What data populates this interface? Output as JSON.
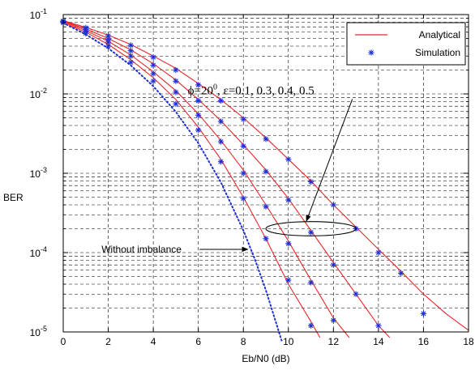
{
  "chart_data": {
    "type": "line",
    "title": "",
    "xlabel": "Eb/N0 (dB)",
    "ylabel": "BER",
    "xlim": [
      0,
      18
    ],
    "ylim": [
      1e-05,
      0.1
    ],
    "yscale": "log",
    "grid": true,
    "x_ticks": [
      "0",
      "2",
      "4",
      "6",
      "8",
      "10",
      "12",
      "14",
      "16",
      "18"
    ],
    "y_ticks": [
      {
        "base": "10",
        "exp": "-5",
        "value": 1e-05
      },
      {
        "base": "10",
        "exp": "-4",
        "value": 0.0001
      },
      {
        "base": "10",
        "exp": "-3",
        "value": 0.001
      },
      {
        "base": "10",
        "exp": "-2",
        "value": 0.01
      },
      {
        "base": "10",
        "exp": "-1",
        "value": 0.1
      }
    ],
    "legend": {
      "position": "top-right",
      "entries": [
        {
          "label": "Analytical",
          "style": "line",
          "color": "#e8262a"
        },
        {
          "label": "Simulation",
          "style": "marker",
          "color": "#1f2fd6"
        }
      ]
    },
    "series": [
      {
        "style": "dotted",
        "color": "#1f2fd6",
        "x": [
          0,
          1,
          2,
          3,
          4,
          5,
          6,
          7,
          8,
          8.5,
          9,
          9.7
        ],
        "y": [
          0.0786,
          0.0563,
          0.0375,
          0.0229,
          0.0125,
          0.00595,
          0.00239,
          0.000773,
          0.000191,
          8.41e-05,
          3.36e-05,
          7.8e-06
        ]
      },
      {
        "style": "line",
        "color": "#e8262a",
        "x": [
          0,
          1,
          2,
          3,
          4,
          5,
          6,
          7,
          8,
          9,
          10,
          11,
          11.4
        ],
        "y": [
          0.08,
          0.06,
          0.042,
          0.027,
          0.016,
          0.0085,
          0.0038,
          0.0015,
          0.0005,
          0.00015,
          4e-05,
          1.35e-05,
          8.5e-06
        ]
      },
      {
        "style": "line",
        "color": "#e8262a",
        "x": [
          0,
          1,
          2,
          3,
          4,
          5,
          6,
          7,
          8,
          9,
          10,
          11,
          12,
          12.7
        ],
        "y": [
          0.082,
          0.063,
          0.046,
          0.031,
          0.019,
          0.011,
          0.0056,
          0.0026,
          0.0011,
          0.0004,
          0.00014,
          4.5e-05,
          1.5e-05,
          8.5e-06
        ]
      },
      {
        "style": "line",
        "color": "#e8262a",
        "x": [
          0,
          1,
          2,
          3,
          4,
          5,
          6,
          7,
          8,
          9,
          10,
          11,
          12,
          13,
          14,
          14.5
        ],
        "y": [
          0.083,
          0.066,
          0.05,
          0.036,
          0.024,
          0.015,
          0.0085,
          0.0046,
          0.0023,
          0.0011,
          0.00048,
          0.00019,
          7.5e-05,
          3e-05,
          1.2e-05,
          8.5e-06
        ]
      },
      {
        "style": "line",
        "color": "#e8262a",
        "x": [
          0,
          1,
          2,
          3,
          4,
          5,
          6,
          7,
          8,
          9,
          10,
          11,
          12,
          13,
          14,
          15,
          16,
          17,
          18
        ],
        "y": [
          0.084,
          0.069,
          0.055,
          0.042,
          0.03,
          0.021,
          0.0135,
          0.0085,
          0.005,
          0.0028,
          0.0015,
          0.0008,
          0.0004,
          0.00021,
          0.00011,
          5.8e-05,
          3e-05,
          1.7e-05,
          1.05e-05
        ]
      },
      {
        "style": "marker",
        "color": "#1f2fd6",
        "x": [
          0,
          1,
          2,
          3,
          4,
          5,
          6,
          7,
          8,
          9,
          10,
          11
        ],
        "y": [
          0.079,
          0.058,
          0.04,
          0.025,
          0.0145,
          0.0075,
          0.0035,
          0.0014,
          0.00048,
          0.00015,
          4.5e-05,
          1.2e-05
        ]
      },
      {
        "style": "marker",
        "color": "#1f2fd6",
        "x": [
          0,
          1,
          2,
          3,
          4,
          5,
          6,
          7,
          8,
          9,
          10,
          11,
          12
        ],
        "y": [
          0.081,
          0.062,
          0.045,
          0.03,
          0.018,
          0.0105,
          0.0054,
          0.0025,
          0.001,
          0.00038,
          0.00013,
          4.2e-05,
          1.4e-05
        ]
      },
      {
        "style": "marker",
        "color": "#1f2fd6",
        "x": [
          0,
          1,
          2,
          3,
          4,
          5,
          6,
          7,
          8,
          9,
          10,
          11,
          12,
          13,
          14
        ],
        "y": [
          0.082,
          0.065,
          0.049,
          0.035,
          0.023,
          0.0145,
          0.0082,
          0.0045,
          0.0022,
          0.00105,
          0.00046,
          0.00018,
          7e-05,
          3e-05,
          1.2e-05
        ]
      },
      {
        "style": "marker",
        "color": "#1f2fd6",
        "x": [
          0,
          1,
          2,
          3,
          4,
          5,
          6,
          7,
          8,
          9,
          10,
          11,
          12,
          13,
          14,
          15,
          16
        ],
        "y": [
          0.083,
          0.068,
          0.054,
          0.041,
          0.029,
          0.02,
          0.013,
          0.0082,
          0.0048,
          0.0027,
          0.0015,
          0.00078,
          0.0004,
          0.0002,
          0.0001,
          5.5e-05,
          1.7e-05
        ]
      }
    ],
    "annotations": [
      {
        "name": "phi-epsilon",
        "text": "ϕ=20",
        "sup": "0",
        "rest": ", ε=0.1, 0.3, 0.4, 0.5",
        "x": 8.7,
        "y": 0.009,
        "arrow_to": {
          "x": 10.8,
          "y": 0.00025
        },
        "ellipse": {
          "cx": 11,
          "cy": 0.0002,
          "rx_data": 2.0,
          "ry_decades": 0.09
        }
      },
      {
        "name": "without-imbalance",
        "text": "Without imbalance",
        "x": 1.7,
        "y": 0.00011,
        "arrow_to": {
          "x": 8.2,
          "y": 0.00011
        }
      }
    ]
  }
}
